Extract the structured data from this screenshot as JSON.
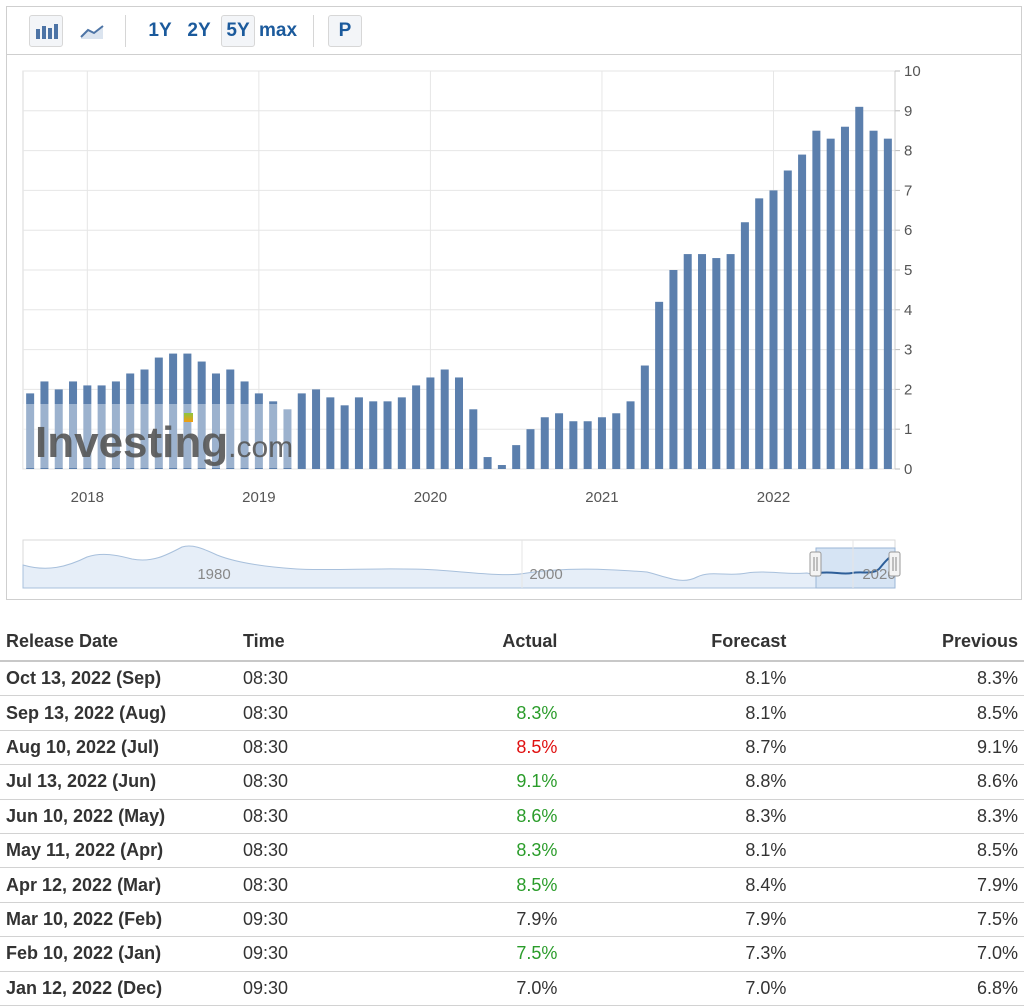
{
  "toolbar": {
    "chart_types": [
      {
        "name": "bar-chart-icon",
        "active": true
      },
      {
        "name": "line-chart-icon",
        "active": false
      }
    ],
    "periods": [
      {
        "label": "1Y",
        "active": false
      },
      {
        "label": "2Y",
        "active": false
      },
      {
        "label": "5Y",
        "active": true
      },
      {
        "label": "max",
        "active": false
      }
    ],
    "extra_button": "P"
  },
  "colors": {
    "bar": "#5b7fad",
    "grid": "#e6e6e6",
    "axis_text": "#555555",
    "link": "#1b5a9c",
    "positive": "#2a9c2a",
    "negative": "#e01010"
  },
  "chart_data": {
    "type": "bar",
    "y_axis_position": "right",
    "ylim": [
      0,
      10
    ],
    "y_ticks": [
      0,
      1,
      2,
      3,
      4,
      5,
      6,
      7,
      8,
      9,
      10
    ],
    "x_range": [
      "2017-09",
      "2022-09"
    ],
    "x_tick_labels": [
      "2018",
      "2019",
      "2020",
      "2021",
      "2022"
    ],
    "grid": true,
    "x": [
      "2017-09",
      "2017-10",
      "2017-11",
      "2017-12",
      "2018-01",
      "2018-02",
      "2018-03",
      "2018-04",
      "2018-05",
      "2018-06",
      "2018-07",
      "2018-08",
      "2018-09",
      "2018-10",
      "2018-11",
      "2018-12",
      "2019-01",
      "2019-02",
      "2019-03",
      "2019-04",
      "2019-05",
      "2019-06",
      "2019-07",
      "2019-08",
      "2019-09",
      "2019-10",
      "2019-11",
      "2019-12",
      "2020-01",
      "2020-02",
      "2020-03",
      "2020-04",
      "2020-05",
      "2020-06",
      "2020-07",
      "2020-08",
      "2020-09",
      "2020-10",
      "2020-11",
      "2020-12",
      "2021-01",
      "2021-02",
      "2021-03",
      "2021-04",
      "2021-05",
      "2021-06",
      "2021-07",
      "2021-08",
      "2021-09",
      "2021-10",
      "2021-11",
      "2021-12",
      "2022-01",
      "2022-02",
      "2022-03",
      "2022-04",
      "2022-05",
      "2022-06",
      "2022-07",
      "2022-08",
      "2022-09"
    ],
    "values": [
      1.9,
      2.2,
      2.0,
      2.2,
      2.1,
      2.1,
      2.2,
      2.4,
      2.5,
      2.8,
      2.9,
      2.9,
      2.7,
      2.4,
      2.5,
      2.2,
      1.9,
      1.7,
      1.5,
      1.9,
      2.0,
      1.8,
      1.6,
      1.8,
      1.7,
      1.7,
      1.8,
      2.1,
      2.3,
      2.5,
      2.3,
      1.5,
      0.3,
      0.1,
      0.6,
      1.0,
      1.3,
      1.4,
      1.2,
      1.2,
      1.3,
      1.4,
      1.7,
      2.6,
      4.2,
      5.0,
      5.4,
      5.4,
      5.3,
      5.4,
      6.2,
      6.8,
      7.0,
      7.5,
      7.9,
      8.5,
      8.3,
      8.6,
      9.1,
      8.5,
      8.3
    ],
    "watermark": "Investing.com",
    "navigator": {
      "labels": [
        "1980",
        "2000",
        "2020"
      ]
    }
  },
  "table": {
    "headers": [
      "Release Date",
      "Time",
      "Actual",
      "Forecast",
      "Previous"
    ],
    "rows": [
      {
        "date": "Oct 13, 2022 (Sep)",
        "time": "08:30",
        "actual": "",
        "actual_color": "",
        "forecast": "8.1%",
        "previous": "8.3%"
      },
      {
        "date": "Sep 13, 2022 (Aug)",
        "time": "08:30",
        "actual": "8.3%",
        "actual_color": "green",
        "forecast": "8.1%",
        "previous": "8.5%"
      },
      {
        "date": "Aug 10, 2022 (Jul)",
        "time": "08:30",
        "actual": "8.5%",
        "actual_color": "red",
        "forecast": "8.7%",
        "previous": "9.1%"
      },
      {
        "date": "Jul 13, 2022 (Jun)",
        "time": "08:30",
        "actual": "9.1%",
        "actual_color": "green",
        "forecast": "8.8%",
        "previous": "8.6%"
      },
      {
        "date": "Jun 10, 2022 (May)",
        "time": "08:30",
        "actual": "8.6%",
        "actual_color": "green",
        "forecast": "8.3%",
        "previous": "8.3%"
      },
      {
        "date": "May 11, 2022 (Apr)",
        "time": "08:30",
        "actual": "8.3%",
        "actual_color": "green",
        "forecast": "8.1%",
        "previous": "8.5%"
      },
      {
        "date": "Apr 12, 2022 (Mar)",
        "time": "08:30",
        "actual": "8.5%",
        "actual_color": "green",
        "forecast": "8.4%",
        "previous": "7.9%"
      },
      {
        "date": "Mar 10, 2022 (Feb)",
        "time": "09:30",
        "actual": "7.9%",
        "actual_color": "",
        "forecast": "7.9%",
        "previous": "7.5%"
      },
      {
        "date": "Feb 10, 2022 (Jan)",
        "time": "09:30",
        "actual": "7.5%",
        "actual_color": "green",
        "forecast": "7.3%",
        "previous": "7.0%"
      },
      {
        "date": "Jan 12, 2022 (Dec)",
        "time": "09:30",
        "actual": "7.0%",
        "actual_color": "",
        "forecast": "7.0%",
        "previous": "6.8%"
      }
    ]
  }
}
